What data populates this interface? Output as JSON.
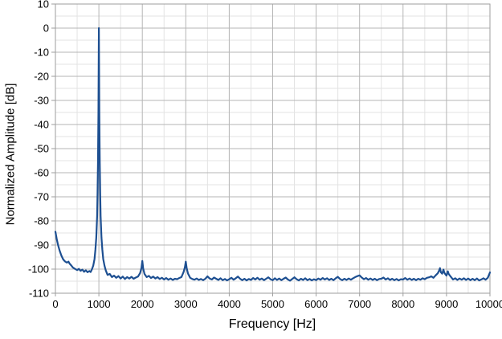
{
  "chart_data": {
    "type": "line",
    "title": "",
    "xlabel": "Frequency [Hz]",
    "ylabel": "Normalized Amplitude [dB]",
    "xlim": [
      0,
      10000
    ],
    "ylim": [
      -110,
      10
    ],
    "x_major_ticks": [
      0,
      1000,
      2000,
      3000,
      4000,
      5000,
      6000,
      7000,
      8000,
      9000,
      10000
    ],
    "y_major_ticks": [
      10,
      0,
      -10,
      -20,
      -30,
      -40,
      -50,
      -60,
      -70,
      -80,
      -90,
      -100,
      -110
    ],
    "x_minor_step": 500,
    "y_minor_step": 5,
    "grid": true,
    "legend": "none",
    "colors": {
      "line": "#1d4f91",
      "grid_major": "#b5b5b5",
      "grid_minor": "#e3e3e3",
      "border": "#9e9e9e",
      "background": "#ffffff",
      "tick_text": "#000000"
    },
    "series": [
      {
        "name": "spectrum",
        "points": [
          [
            0,
            -84.5
          ],
          [
            30,
            -87.5
          ],
          [
            60,
            -90.0
          ],
          [
            100,
            -92.5
          ],
          [
            140,
            -94.5
          ],
          [
            180,
            -96.0
          ],
          [
            220,
            -96.8
          ],
          [
            260,
            -97.3
          ],
          [
            300,
            -96.9
          ],
          [
            330,
            -97.8
          ],
          [
            370,
            -98.6
          ],
          [
            400,
            -99.3
          ],
          [
            450,
            -99.9
          ],
          [
            500,
            -100.4
          ],
          [
            540,
            -99.9
          ],
          [
            580,
            -100.7
          ],
          [
            620,
            -100.2
          ],
          [
            660,
            -101.1
          ],
          [
            700,
            -100.5
          ],
          [
            740,
            -101.3
          ],
          [
            780,
            -100.8
          ],
          [
            810,
            -101.2
          ],
          [
            840,
            -100.1
          ],
          [
            870,
            -98.6
          ],
          [
            900,
            -95.8
          ],
          [
            920,
            -92.0
          ],
          [
            940,
            -87.0
          ],
          [
            960,
            -78.0
          ],
          [
            970,
            -68.0
          ],
          [
            980,
            -55.0
          ],
          [
            990,
            -35.0
          ],
          [
            995,
            -18.0
          ],
          [
            1000,
            0.0
          ],
          [
            1005,
            -18.0
          ],
          [
            1010,
            -35.0
          ],
          [
            1020,
            -55.0
          ],
          [
            1030,
            -68.0
          ],
          [
            1040,
            -78.0
          ],
          [
            1060,
            -87.0
          ],
          [
            1080,
            -92.0
          ],
          [
            1100,
            -95.8
          ],
          [
            1130,
            -98.6
          ],
          [
            1160,
            -100.6
          ],
          [
            1200,
            -102.4
          ],
          [
            1250,
            -102.0
          ],
          [
            1300,
            -103.3
          ],
          [
            1350,
            -102.7
          ],
          [
            1400,
            -103.6
          ],
          [
            1450,
            -102.9
          ],
          [
            1500,
            -103.9
          ],
          [
            1550,
            -103.1
          ],
          [
            1600,
            -104.1
          ],
          [
            1650,
            -103.3
          ],
          [
            1700,
            -103.9
          ],
          [
            1750,
            -103.2
          ],
          [
            1800,
            -104.0
          ],
          [
            1850,
            -103.5
          ],
          [
            1900,
            -103.1
          ],
          [
            1950,
            -101.6
          ],
          [
            1980,
            -99.5
          ],
          [
            2000,
            -96.6
          ],
          [
            2020,
            -99.8
          ],
          [
            2050,
            -102.0
          ],
          [
            2100,
            -103.3
          ],
          [
            2150,
            -102.8
          ],
          [
            2200,
            -103.7
          ],
          [
            2250,
            -103.1
          ],
          [
            2300,
            -103.9
          ],
          [
            2350,
            -103.3
          ],
          [
            2400,
            -104.1
          ],
          [
            2450,
            -103.6
          ],
          [
            2500,
            -104.3
          ],
          [
            2550,
            -103.7
          ],
          [
            2600,
            -104.4
          ],
          [
            2650,
            -103.9
          ],
          [
            2700,
            -104.5
          ],
          [
            2750,
            -104.0
          ],
          [
            2800,
            -104.2
          ],
          [
            2850,
            -103.7
          ],
          [
            2900,
            -103.3
          ],
          [
            2950,
            -101.2
          ],
          [
            2980,
            -99.2
          ],
          [
            3000,
            -96.9
          ],
          [
            3020,
            -99.5
          ],
          [
            3050,
            -101.8
          ],
          [
            3100,
            -103.6
          ],
          [
            3150,
            -104.1
          ],
          [
            3200,
            -104.4
          ],
          [
            3250,
            -103.9
          ],
          [
            3300,
            -104.5
          ],
          [
            3350,
            -104.1
          ],
          [
            3400,
            -104.6
          ],
          [
            3450,
            -104.0
          ],
          [
            3500,
            -103.0
          ],
          [
            3550,
            -103.9
          ],
          [
            3600,
            -104.3
          ],
          [
            3650,
            -103.5
          ],
          [
            3700,
            -104.0
          ],
          [
            3750,
            -104.5
          ],
          [
            3800,
            -103.8
          ],
          [
            3850,
            -104.6
          ],
          [
            3900,
            -104.1
          ],
          [
            3950,
            -104.7
          ],
          [
            4000,
            -104.2
          ],
          [
            4050,
            -103.6
          ],
          [
            4100,
            -104.4
          ],
          [
            4150,
            -103.8
          ],
          [
            4200,
            -103.1
          ],
          [
            4250,
            -104.0
          ],
          [
            4300,
            -104.6
          ],
          [
            4350,
            -104.0
          ],
          [
            4400,
            -104.7
          ],
          [
            4450,
            -104.1
          ],
          [
            4500,
            -104.5
          ],
          [
            4550,
            -103.7
          ],
          [
            4600,
            -104.3
          ],
          [
            4650,
            -103.6
          ],
          [
            4700,
            -104.4
          ],
          [
            4750,
            -103.9
          ],
          [
            4800,
            -104.6
          ],
          [
            4850,
            -104.0
          ],
          [
            4900,
            -103.4
          ],
          [
            4950,
            -104.2
          ],
          [
            5000,
            -104.6
          ],
          [
            5050,
            -103.8
          ],
          [
            5100,
            -104.5
          ],
          [
            5150,
            -103.9
          ],
          [
            5200,
            -104.6
          ],
          [
            5250,
            -104.0
          ],
          [
            5300,
            -103.5
          ],
          [
            5350,
            -104.3
          ],
          [
            5400,
            -104.8
          ],
          [
            5450,
            -104.1
          ],
          [
            5500,
            -103.4
          ],
          [
            5550,
            -104.2
          ],
          [
            5600,
            -104.7
          ],
          [
            5650,
            -104.0
          ],
          [
            5700,
            -104.5
          ],
          [
            5750,
            -103.8
          ],
          [
            5800,
            -104.6
          ],
          [
            5850,
            -104.1
          ],
          [
            5900,
            -104.7
          ],
          [
            5950,
            -104.2
          ],
          [
            6000,
            -104.6
          ],
          [
            6050,
            -103.9
          ],
          [
            6100,
            -104.4
          ],
          [
            6150,
            -103.7
          ],
          [
            6200,
            -104.3
          ],
          [
            6250,
            -103.8
          ],
          [
            6300,
            -104.5
          ],
          [
            6350,
            -104.0
          ],
          [
            6400,
            -104.6
          ],
          [
            6450,
            -103.8
          ],
          [
            6500,
            -103.2
          ],
          [
            6550,
            -104.1
          ],
          [
            6600,
            -104.6
          ],
          [
            6650,
            -104.0
          ],
          [
            6700,
            -104.5
          ],
          [
            6750,
            -103.9
          ],
          [
            6800,
            -104.4
          ],
          [
            6850,
            -103.8
          ],
          [
            6900,
            -103.3
          ],
          [
            6950,
            -102.9
          ],
          [
            7000,
            -102.6
          ],
          [
            7050,
            -103.5
          ],
          [
            7100,
            -104.2
          ],
          [
            7150,
            -103.7
          ],
          [
            7200,
            -104.4
          ],
          [
            7250,
            -103.9
          ],
          [
            7300,
            -104.5
          ],
          [
            7350,
            -104.0
          ],
          [
            7400,
            -104.6
          ],
          [
            7450,
            -104.1
          ],
          [
            7500,
            -104.0
          ],
          [
            7550,
            -103.5
          ],
          [
            7600,
            -104.3
          ],
          [
            7650,
            -103.8
          ],
          [
            7700,
            -104.5
          ],
          [
            7750,
            -104.0
          ],
          [
            7800,
            -104.6
          ],
          [
            7850,
            -104.1
          ],
          [
            7900,
            -104.7
          ],
          [
            7950,
            -104.2
          ],
          [
            8000,
            -104.3
          ],
          [
            8050,
            -103.7
          ],
          [
            8100,
            -104.4
          ],
          [
            8150,
            -103.9
          ],
          [
            8200,
            -104.5
          ],
          [
            8250,
            -104.0
          ],
          [
            8300,
            -104.6
          ],
          [
            8350,
            -104.0
          ],
          [
            8400,
            -104.4
          ],
          [
            8450,
            -103.8
          ],
          [
            8500,
            -104.2
          ],
          [
            8550,
            -103.6
          ],
          [
            8600,
            -103.4
          ],
          [
            8650,
            -103.0
          ],
          [
            8700,
            -103.6
          ],
          [
            8750,
            -102.6
          ],
          [
            8800,
            -101.7
          ],
          [
            8830,
            -100.6
          ],
          [
            8850,
            -99.6
          ],
          [
            8870,
            -101.3
          ],
          [
            8900,
            -101.9
          ],
          [
            8930,
            -100.2
          ],
          [
            8950,
            -101.5
          ],
          [
            8980,
            -102.3
          ],
          [
            9000,
            -102.7
          ],
          [
            9030,
            -100.9
          ],
          [
            9050,
            -102.0
          ],
          [
            9100,
            -103.2
          ],
          [
            9150,
            -104.3
          ],
          [
            9200,
            -103.8
          ],
          [
            9250,
            -104.5
          ],
          [
            9300,
            -103.9
          ],
          [
            9350,
            -104.4
          ],
          [
            9400,
            -103.8
          ],
          [
            9450,
            -104.5
          ],
          [
            9500,
            -103.9
          ],
          [
            9550,
            -104.6
          ],
          [
            9600,
            -104.0
          ],
          [
            9650,
            -104.6
          ],
          [
            9700,
            -103.9
          ],
          [
            9750,
            -104.7
          ],
          [
            9800,
            -104.3
          ],
          [
            9850,
            -103.8
          ],
          [
            9900,
            -104.4
          ],
          [
            9950,
            -103.6
          ],
          [
            10000,
            -101.4
          ]
        ]
      }
    ]
  }
}
